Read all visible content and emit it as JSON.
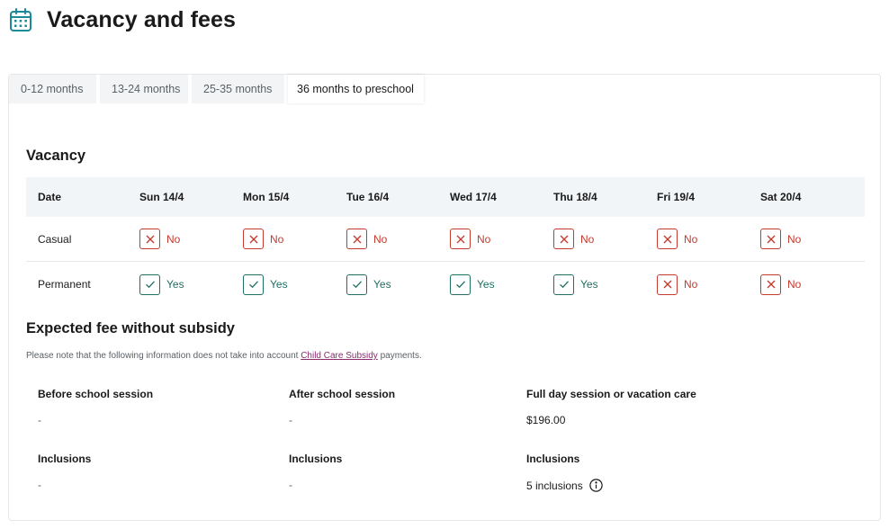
{
  "page": {
    "title": "Vacancy and fees",
    "icon": "calendar-icon"
  },
  "tabs": [
    {
      "label": "0-12 months",
      "active": false
    },
    {
      "label": "13-24 months",
      "active": false
    },
    {
      "label": "25-35 months",
      "active": false
    },
    {
      "label": "36 months to preschool",
      "active": true
    }
  ],
  "vacancy": {
    "title": "Vacancy",
    "header": {
      "date_label": "Date",
      "days": [
        "Sun 14/4",
        "Mon 15/4",
        "Tue 16/4",
        "Wed 17/4",
        "Thu 18/4",
        "Fri 19/4",
        "Sat 20/4"
      ]
    },
    "rows": [
      {
        "label": "Casual",
        "values": [
          "No",
          "No",
          "No",
          "No",
          "No",
          "No",
          "No"
        ]
      },
      {
        "label": "Permanent",
        "values": [
          "Yes",
          "Yes",
          "Yes",
          "Yes",
          "Yes",
          "No",
          "No"
        ]
      }
    ]
  },
  "fees": {
    "title": "Expected fee without subsidy",
    "note_prefix": "Please note that the following information does not take into account ",
    "note_link": "Child Care Subsidy",
    "note_suffix": " payments.",
    "columns": [
      {
        "label": "Before school session",
        "value": "-",
        "inclusions_label": "Inclusions",
        "inclusions_value": "-"
      },
      {
        "label": "After school session",
        "value": "-",
        "inclusions_label": "Inclusions",
        "inclusions_value": "-"
      },
      {
        "label": "Full day session or vacation care",
        "value": "$196.00",
        "inclusions_label": "Inclusions",
        "inclusions_value": "5 inclusions"
      }
    ]
  },
  "colors": {
    "no": "#c33a2e",
    "yes": "#1f6f62",
    "link": "#8a2b6f",
    "icon": "#1a8a99"
  }
}
